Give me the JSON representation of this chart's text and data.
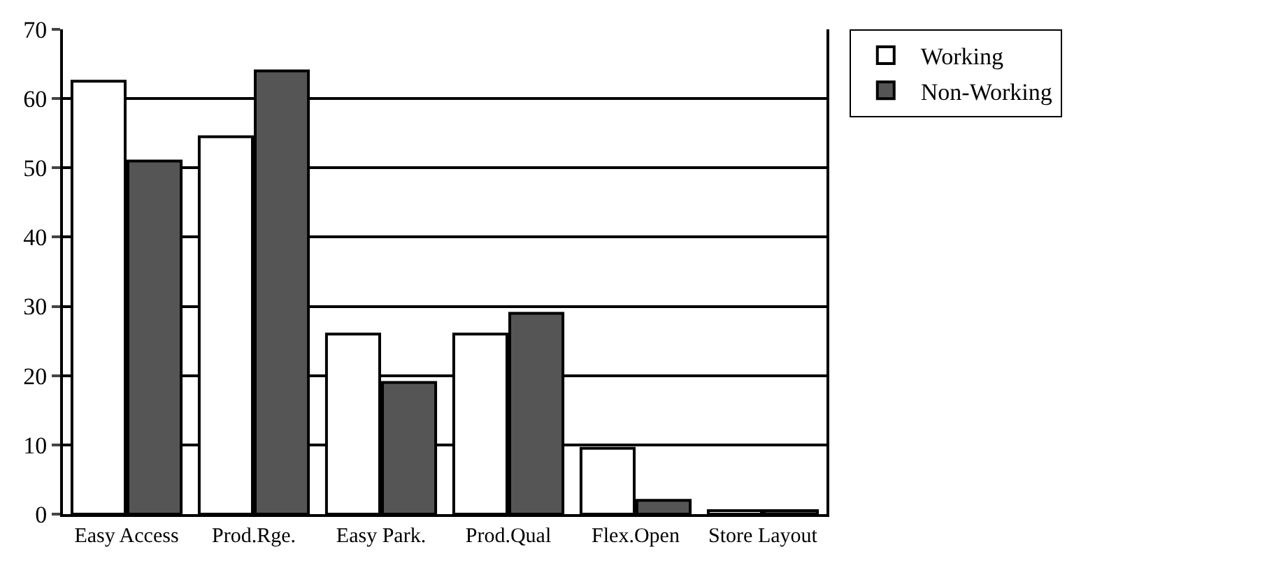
{
  "chart_data": {
    "type": "bar",
    "categories": [
      "Easy Access",
      "Prod.Rge.",
      "Easy Park.",
      "Prod.Qual",
      "Flex.Open",
      "Store Layout"
    ],
    "series": [
      {
        "name": "Working",
        "color": "#ffffff",
        "values": [
          62.5,
          54.5,
          26,
          26,
          9.5,
          0.5
        ]
      },
      {
        "name": "Non-Working",
        "color": "#555555",
        "values": [
          51,
          64,
          19,
          29,
          2,
          0.5
        ]
      }
    ],
    "ylim": [
      0,
      70
    ],
    "yticks": [
      0,
      10,
      20,
      30,
      40,
      50,
      60,
      70
    ],
    "grid": "y",
    "legend": "top right"
  }
}
